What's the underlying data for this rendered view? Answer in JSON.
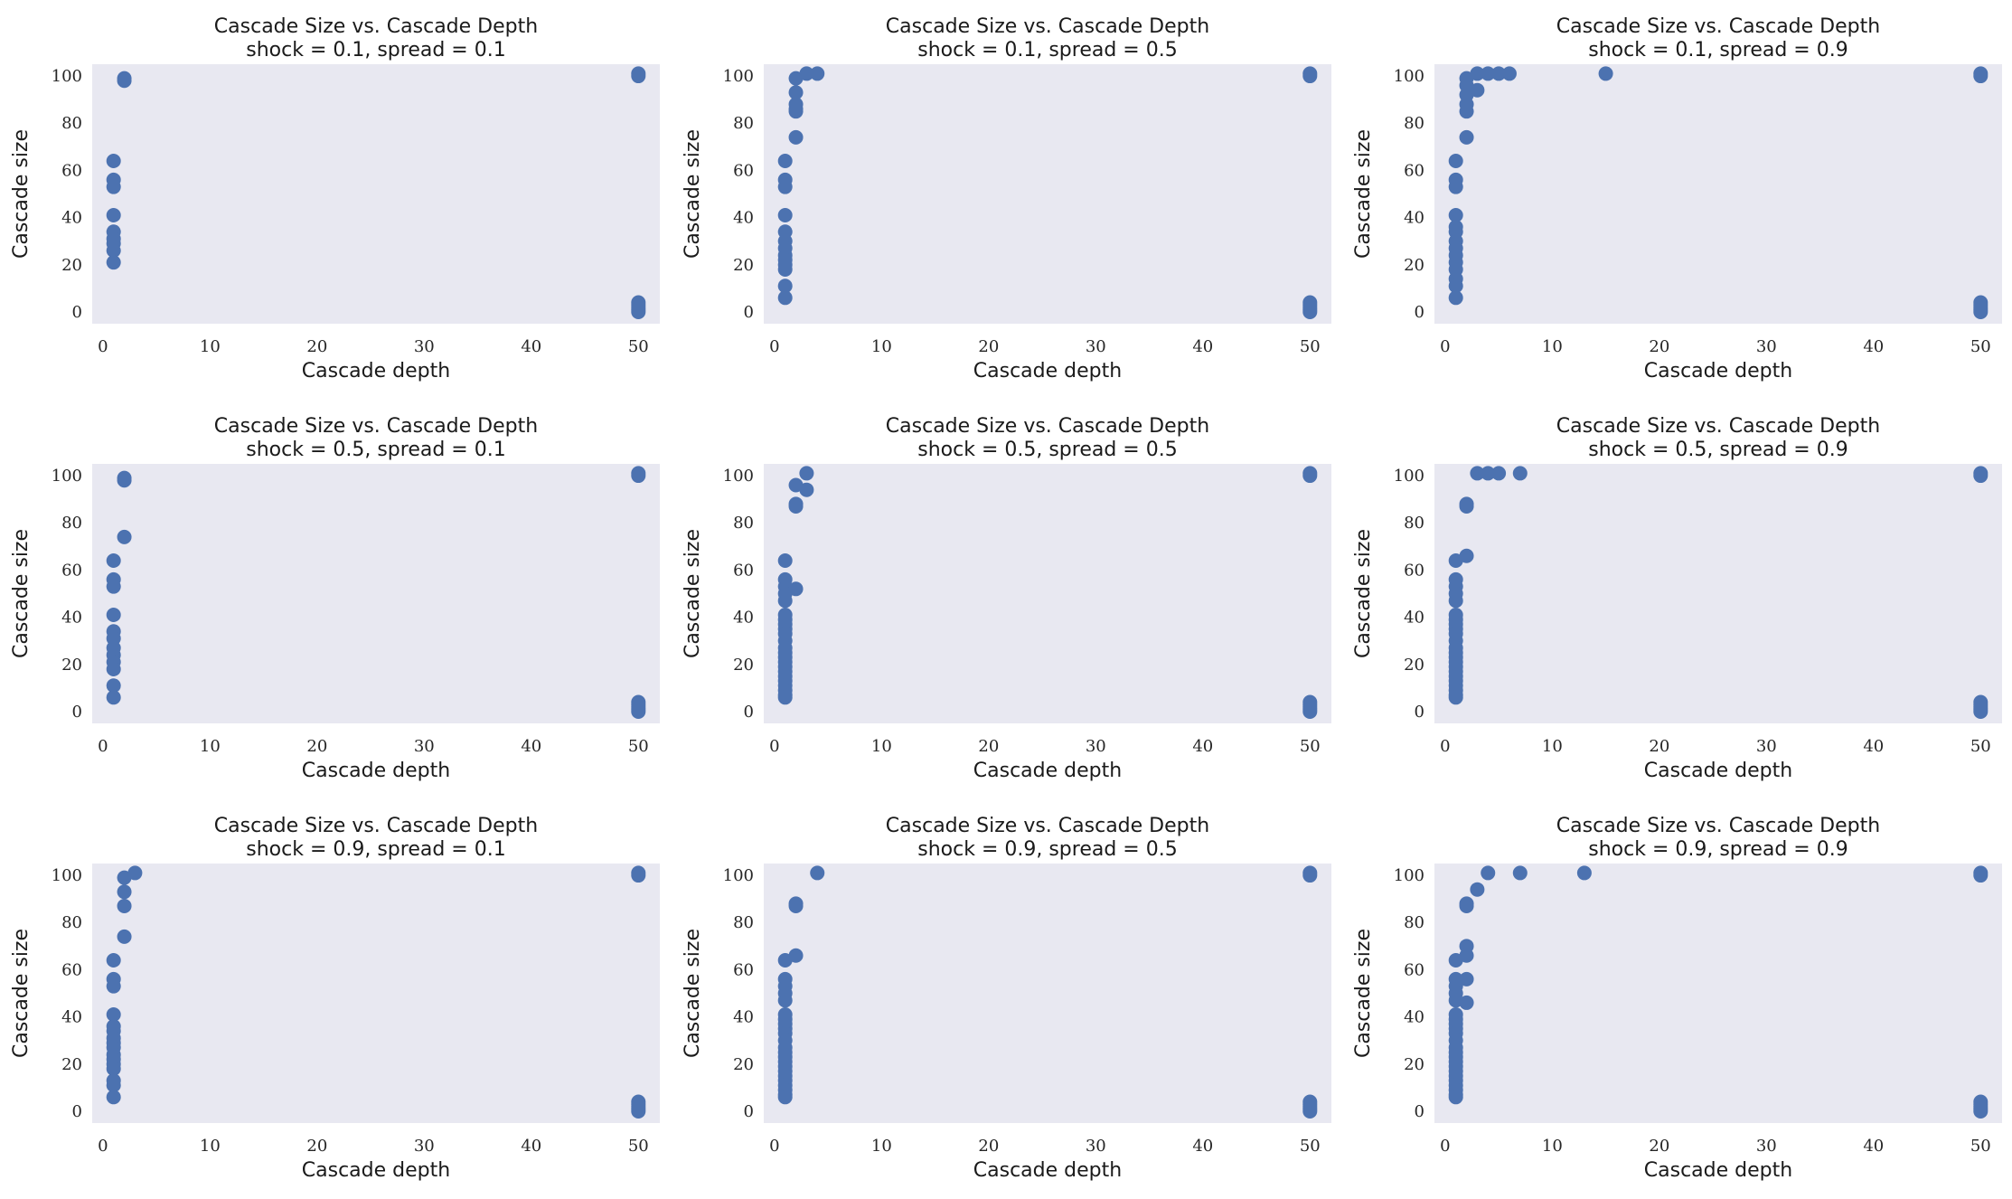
{
  "chart_data": [
    {
      "type": "scatter",
      "title": "Cascade Size vs. Cascade Depth",
      "subtitle": "shock = 0.1, spread = 0.1",
      "xlabel": "Cascade depth",
      "ylabel": "Cascade size",
      "xlim": [
        -1,
        52
      ],
      "ylim": [
        -5,
        105
      ],
      "xticks": [
        0,
        10,
        20,
        30,
        40,
        50
      ],
      "yticks": [
        0,
        20,
        40,
        60,
        80,
        100
      ],
      "grid": false,
      "color": "#4c72b0",
      "points": [
        [
          1,
          64
        ],
        [
          1,
          56
        ],
        [
          1,
          53
        ],
        [
          1,
          41
        ],
        [
          1,
          34
        ],
        [
          1,
          31
        ],
        [
          1,
          29
        ],
        [
          1,
          26
        ],
        [
          1,
          21
        ],
        [
          2,
          99
        ],
        [
          2,
          98
        ],
        [
          50,
          101
        ],
        [
          50,
          100
        ],
        [
          50,
          4
        ],
        [
          50,
          3
        ],
        [
          50,
          2
        ],
        [
          50,
          1
        ],
        [
          50,
          0
        ]
      ]
    },
    {
      "type": "scatter",
      "title": "Cascade Size vs. Cascade Depth",
      "subtitle": "shock = 0.1, spread = 0.5",
      "xlabel": "Cascade depth",
      "ylabel": "Cascade size",
      "xlim": [
        -1,
        52
      ],
      "ylim": [
        -5,
        105
      ],
      "xticks": [
        0,
        10,
        20,
        30,
        40,
        50
      ],
      "yticks": [
        0,
        20,
        40,
        60,
        80,
        100
      ],
      "grid": false,
      "color": "#4c72b0",
      "points": [
        [
          1,
          64
        ],
        [
          1,
          56
        ],
        [
          1,
          53
        ],
        [
          1,
          41
        ],
        [
          1,
          34
        ],
        [
          1,
          30
        ],
        [
          1,
          27
        ],
        [
          1,
          24
        ],
        [
          1,
          22
        ],
        [
          1,
          20
        ],
        [
          1,
          18
        ],
        [
          1,
          11
        ],
        [
          1,
          6
        ],
        [
          2,
          99
        ],
        [
          2,
          93
        ],
        [
          2,
          88
        ],
        [
          2,
          86
        ],
        [
          2,
          85
        ],
        [
          2,
          74
        ],
        [
          3,
          101
        ],
        [
          4,
          101
        ],
        [
          50,
          101
        ],
        [
          50,
          100
        ],
        [
          50,
          4
        ],
        [
          50,
          3
        ],
        [
          50,
          2
        ],
        [
          50,
          1
        ],
        [
          50,
          0
        ]
      ]
    },
    {
      "type": "scatter",
      "title": "Cascade Size vs. Cascade Depth",
      "subtitle": "shock = 0.1, spread = 0.9",
      "xlabel": "Cascade depth",
      "ylabel": "Cascade size",
      "xlim": [
        -1,
        52
      ],
      "ylim": [
        -5,
        105
      ],
      "xticks": [
        0,
        10,
        20,
        30,
        40,
        50
      ],
      "yticks": [
        0,
        20,
        40,
        60,
        80,
        100
      ],
      "grid": false,
      "color": "#4c72b0",
      "points": [
        [
          1,
          64
        ],
        [
          1,
          56
        ],
        [
          1,
          53
        ],
        [
          1,
          41
        ],
        [
          1,
          36
        ],
        [
          1,
          34
        ],
        [
          1,
          30
        ],
        [
          1,
          27
        ],
        [
          1,
          24
        ],
        [
          1,
          21
        ],
        [
          1,
          18
        ],
        [
          1,
          14
        ],
        [
          1,
          11
        ],
        [
          1,
          6
        ],
        [
          2,
          99
        ],
        [
          2,
          96
        ],
        [
          2,
          92
        ],
        [
          2,
          88
        ],
        [
          2,
          85
        ],
        [
          2,
          74
        ],
        [
          3,
          101
        ],
        [
          3,
          94
        ],
        [
          4,
          101
        ],
        [
          5,
          101
        ],
        [
          6,
          101
        ],
        [
          15,
          101
        ],
        [
          50,
          101
        ],
        [
          50,
          100
        ],
        [
          50,
          4
        ],
        [
          50,
          3
        ],
        [
          50,
          2
        ],
        [
          50,
          1
        ],
        [
          50,
          0
        ]
      ]
    },
    {
      "type": "scatter",
      "title": "Cascade Size vs. Cascade Depth",
      "subtitle": "shock = 0.5, spread = 0.1",
      "xlabel": "Cascade depth",
      "ylabel": "Cascade size",
      "xlim": [
        -1,
        52
      ],
      "ylim": [
        -5,
        105
      ],
      "xticks": [
        0,
        10,
        20,
        30,
        40,
        50
      ],
      "yticks": [
        0,
        20,
        40,
        60,
        80,
        100
      ],
      "grid": false,
      "color": "#4c72b0",
      "points": [
        [
          1,
          64
        ],
        [
          1,
          56
        ],
        [
          1,
          53
        ],
        [
          1,
          41
        ],
        [
          1,
          34
        ],
        [
          1,
          31
        ],
        [
          1,
          27
        ],
        [
          1,
          24
        ],
        [
          1,
          21
        ],
        [
          1,
          18
        ],
        [
          1,
          11
        ],
        [
          1,
          6
        ],
        [
          2,
          99
        ],
        [
          2,
          98
        ],
        [
          2,
          74
        ],
        [
          50,
          101
        ],
        [
          50,
          100
        ],
        [
          50,
          4
        ],
        [
          50,
          3
        ],
        [
          50,
          2
        ],
        [
          50,
          1
        ],
        [
          50,
          0
        ]
      ]
    },
    {
      "type": "scatter",
      "title": "Cascade Size vs. Cascade Depth",
      "subtitle": "shock = 0.5, spread = 0.5",
      "xlabel": "Cascade depth",
      "ylabel": "Cascade size",
      "xlim": [
        -1,
        52
      ],
      "ylim": [
        -5,
        105
      ],
      "xticks": [
        0,
        10,
        20,
        30,
        40,
        50
      ],
      "yticks": [
        0,
        20,
        40,
        60,
        80,
        100
      ],
      "grid": false,
      "color": "#4c72b0",
      "points": [
        [
          1,
          64
        ],
        [
          1,
          56
        ],
        [
          1,
          53
        ],
        [
          1,
          50
        ],
        [
          1,
          47
        ],
        [
          1,
          41
        ],
        [
          1,
          39
        ],
        [
          1,
          37
        ],
        [
          1,
          35
        ],
        [
          1,
          33
        ],
        [
          1,
          30
        ],
        [
          1,
          27
        ],
        [
          1,
          25
        ],
        [
          1,
          23
        ],
        [
          1,
          21
        ],
        [
          1,
          19
        ],
        [
          1,
          17
        ],
        [
          1,
          15
        ],
        [
          1,
          13
        ],
        [
          1,
          11
        ],
        [
          1,
          9
        ],
        [
          1,
          7
        ],
        [
          1,
          6
        ],
        [
          2,
          96
        ],
        [
          2,
          88
        ],
        [
          2,
          87
        ],
        [
          2,
          52
        ],
        [
          3,
          101
        ],
        [
          3,
          94
        ],
        [
          50,
          101
        ],
        [
          50,
          100
        ],
        [
          50,
          4
        ],
        [
          50,
          3
        ],
        [
          50,
          2
        ],
        [
          50,
          1
        ],
        [
          50,
          0
        ]
      ]
    },
    {
      "type": "scatter",
      "title": "Cascade Size vs. Cascade Depth",
      "subtitle": "shock = 0.5, spread = 0.9",
      "xlabel": "Cascade depth",
      "ylabel": "Cascade size",
      "xlim": [
        -1,
        52
      ],
      "ylim": [
        -5,
        105
      ],
      "xticks": [
        0,
        10,
        20,
        30,
        40,
        50
      ],
      "yticks": [
        0,
        20,
        40,
        60,
        80,
        100
      ],
      "grid": false,
      "color": "#4c72b0",
      "points": [
        [
          1,
          64
        ],
        [
          1,
          56
        ],
        [
          1,
          53
        ],
        [
          1,
          50
        ],
        [
          1,
          47
        ],
        [
          1,
          41
        ],
        [
          1,
          39
        ],
        [
          1,
          37
        ],
        [
          1,
          35
        ],
        [
          1,
          33
        ],
        [
          1,
          30
        ],
        [
          1,
          27
        ],
        [
          1,
          25
        ],
        [
          1,
          23
        ],
        [
          1,
          21
        ],
        [
          1,
          19
        ],
        [
          1,
          17
        ],
        [
          1,
          15
        ],
        [
          1,
          13
        ],
        [
          1,
          11
        ],
        [
          1,
          9
        ],
        [
          1,
          7
        ],
        [
          1,
          6
        ],
        [
          2,
          88
        ],
        [
          2,
          87
        ],
        [
          2,
          66
        ],
        [
          3,
          101
        ],
        [
          4,
          101
        ],
        [
          5,
          101
        ],
        [
          7,
          101
        ],
        [
          50,
          101
        ],
        [
          50,
          100
        ],
        [
          50,
          4
        ],
        [
          50,
          3
        ],
        [
          50,
          2
        ],
        [
          50,
          1
        ],
        [
          50,
          0
        ]
      ]
    },
    {
      "type": "scatter",
      "title": "Cascade Size vs. Cascade Depth",
      "subtitle": "shock = 0.9, spread = 0.1",
      "xlabel": "Cascade depth",
      "ylabel": "Cascade size",
      "xlim": [
        -1,
        52
      ],
      "ylim": [
        -5,
        105
      ],
      "xticks": [
        0,
        10,
        20,
        30,
        40,
        50
      ],
      "yticks": [
        0,
        20,
        40,
        60,
        80,
        100
      ],
      "grid": false,
      "color": "#4c72b0",
      "points": [
        [
          1,
          64
        ],
        [
          1,
          56
        ],
        [
          1,
          53
        ],
        [
          1,
          41
        ],
        [
          1,
          36
        ],
        [
          1,
          34
        ],
        [
          1,
          31
        ],
        [
          1,
          29
        ],
        [
          1,
          27
        ],
        [
          1,
          24
        ],
        [
          1,
          22
        ],
        [
          1,
          20
        ],
        [
          1,
          18
        ],
        [
          1,
          13
        ],
        [
          1,
          11
        ],
        [
          1,
          6
        ],
        [
          2,
          99
        ],
        [
          2,
          93
        ],
        [
          2,
          87
        ],
        [
          2,
          74
        ],
        [
          3,
          101
        ],
        [
          50,
          101
        ],
        [
          50,
          100
        ],
        [
          50,
          4
        ],
        [
          50,
          3
        ],
        [
          50,
          2
        ],
        [
          50,
          1
        ],
        [
          50,
          0
        ]
      ]
    },
    {
      "type": "scatter",
      "title": "Cascade Size vs. Cascade Depth",
      "subtitle": "shock = 0.9, spread = 0.5",
      "xlabel": "Cascade depth",
      "ylabel": "Cascade size",
      "xlim": [
        -1,
        52
      ],
      "ylim": [
        -5,
        105
      ],
      "xticks": [
        0,
        10,
        20,
        30,
        40,
        50
      ],
      "yticks": [
        0,
        20,
        40,
        60,
        80,
        100
      ],
      "grid": false,
      "color": "#4c72b0",
      "points": [
        [
          1,
          64
        ],
        [
          1,
          56
        ],
        [
          1,
          53
        ],
        [
          1,
          50
        ],
        [
          1,
          47
        ],
        [
          1,
          41
        ],
        [
          1,
          39
        ],
        [
          1,
          37
        ],
        [
          1,
          35
        ],
        [
          1,
          33
        ],
        [
          1,
          30
        ],
        [
          1,
          27
        ],
        [
          1,
          25
        ],
        [
          1,
          23
        ],
        [
          1,
          21
        ],
        [
          1,
          19
        ],
        [
          1,
          17
        ],
        [
          1,
          15
        ],
        [
          1,
          13
        ],
        [
          1,
          11
        ],
        [
          1,
          9
        ],
        [
          1,
          7
        ],
        [
          1,
          6
        ],
        [
          2,
          88
        ],
        [
          2,
          87
        ],
        [
          2,
          66
        ],
        [
          4,
          101
        ],
        [
          50,
          101
        ],
        [
          50,
          100
        ],
        [
          50,
          4
        ],
        [
          50,
          3
        ],
        [
          50,
          2
        ],
        [
          50,
          1
        ],
        [
          50,
          0
        ]
      ]
    },
    {
      "type": "scatter",
      "title": "Cascade Size vs. Cascade Depth",
      "subtitle": "shock = 0.9, spread = 0.9",
      "xlabel": "Cascade depth",
      "ylabel": "Cascade size",
      "xlim": [
        -1,
        52
      ],
      "ylim": [
        -5,
        105
      ],
      "xticks": [
        0,
        10,
        20,
        30,
        40,
        50
      ],
      "yticks": [
        0,
        20,
        40,
        60,
        80,
        100
      ],
      "grid": false,
      "color": "#4c72b0",
      "points": [
        [
          1,
          64
        ],
        [
          1,
          56
        ],
        [
          1,
          53
        ],
        [
          1,
          50
        ],
        [
          1,
          47
        ],
        [
          1,
          41
        ],
        [
          1,
          39
        ],
        [
          1,
          37
        ],
        [
          1,
          35
        ],
        [
          1,
          33
        ],
        [
          1,
          30
        ],
        [
          1,
          27
        ],
        [
          1,
          25
        ],
        [
          1,
          23
        ],
        [
          1,
          21
        ],
        [
          1,
          19
        ],
        [
          1,
          17
        ],
        [
          1,
          15
        ],
        [
          1,
          13
        ],
        [
          1,
          11
        ],
        [
          1,
          9
        ],
        [
          1,
          7
        ],
        [
          1,
          6
        ],
        [
          2,
          88
        ],
        [
          2,
          87
        ],
        [
          2,
          70
        ],
        [
          2,
          66
        ],
        [
          2,
          56
        ],
        [
          2,
          46
        ],
        [
          3,
          94
        ],
        [
          4,
          101
        ],
        [
          7,
          101
        ],
        [
          13,
          101
        ],
        [
          50,
          101
        ],
        [
          50,
          100
        ],
        [
          50,
          4
        ],
        [
          50,
          3
        ],
        [
          50,
          2
        ],
        [
          50,
          1
        ],
        [
          50,
          0
        ]
      ]
    }
  ]
}
